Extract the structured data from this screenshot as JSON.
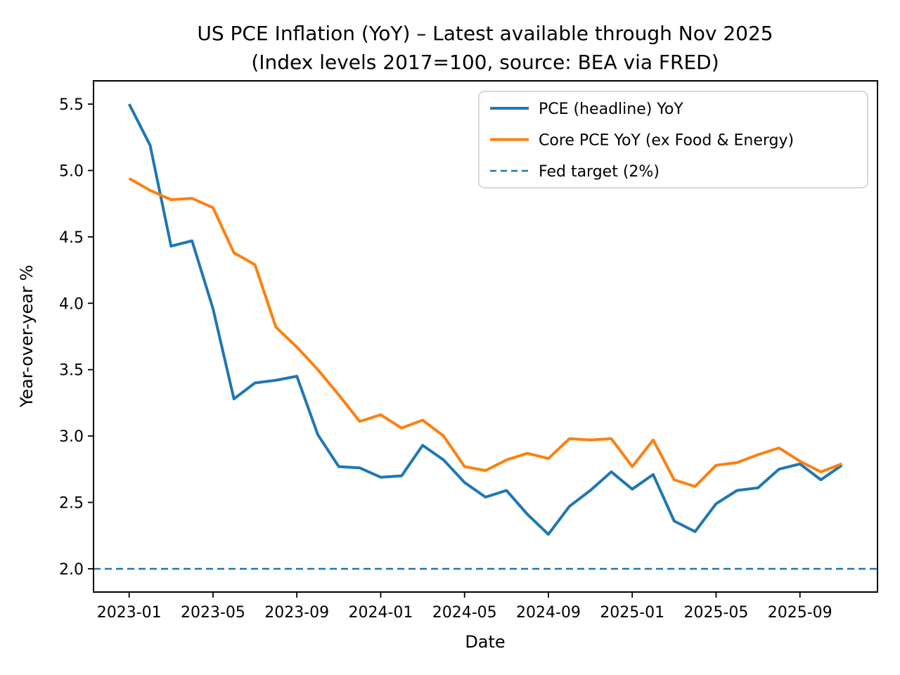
{
  "chart_data": {
    "type": "line",
    "title_line1": "US PCE Inflation (YoY) – Latest available through Nov 2025",
    "title_line2": "(Index levels 2017=100, source: BEA via FRED)",
    "xlabel": "Date",
    "ylabel": "Year-over-year %",
    "x": [
      "2023-01",
      "2023-02",
      "2023-03",
      "2023-04",
      "2023-05",
      "2023-06",
      "2023-07",
      "2023-08",
      "2023-09",
      "2023-10",
      "2023-11",
      "2023-12",
      "2024-01",
      "2024-02",
      "2024-03",
      "2024-04",
      "2024-05",
      "2024-06",
      "2024-07",
      "2024-08",
      "2024-09",
      "2024-10",
      "2024-11",
      "2024-12",
      "2025-01",
      "2025-02",
      "2025-03",
      "2025-04",
      "2025-05",
      "2025-06",
      "2025-07",
      "2025-08",
      "2025-09",
      "2025-10",
      "2025-11"
    ],
    "x_tick_labels": [
      "2023-01",
      "2023-05",
      "2023-09",
      "2024-01",
      "2024-05",
      "2024-09",
      "2025-01",
      "2025-05",
      "2025-09"
    ],
    "y_ticks": [
      2.0,
      2.5,
      3.0,
      3.5,
      4.0,
      4.5,
      5.0,
      5.5
    ],
    "ylim": [
      1.825,
      5.675
    ],
    "grid": false,
    "legend_position": "upper right",
    "series": [
      {
        "name": "PCE (headline) YoY",
        "color": "#1f77b4",
        "style": "solid",
        "values": [
          5.5,
          5.19,
          4.43,
          4.47,
          3.96,
          3.28,
          3.4,
          3.42,
          3.45,
          3.01,
          2.77,
          2.76,
          2.69,
          2.7,
          2.93,
          2.82,
          2.65,
          2.54,
          2.59,
          2.41,
          2.26,
          2.47,
          2.59,
          2.73,
          2.6,
          2.71,
          2.36,
          2.28,
          2.49,
          2.59,
          2.61,
          2.75,
          2.79,
          2.67,
          2.78
        ]
      },
      {
        "name": "Core PCE YoY (ex Food & Energy)",
        "color": "#ff7f0e",
        "style": "solid",
        "values": [
          4.94,
          4.85,
          4.78,
          4.79,
          4.72,
          4.38,
          4.29,
          3.82,
          3.67,
          3.5,
          3.31,
          3.11,
          3.16,
          3.06,
          3.12,
          3.0,
          2.77,
          2.74,
          2.82,
          2.87,
          2.83,
          2.98,
          2.97,
          2.98,
          2.77,
          2.97,
          2.67,
          2.62,
          2.78,
          2.8,
          2.86,
          2.91,
          2.81,
          2.73,
          2.79
        ]
      }
    ],
    "reference_line": {
      "name": "Fed target (2%)",
      "color": "#1f77b4",
      "style": "dashed",
      "value": 2.0
    },
    "colors": {
      "spine": "#000000",
      "legend_border": "#cccccc",
      "background": "#ffffff"
    }
  }
}
